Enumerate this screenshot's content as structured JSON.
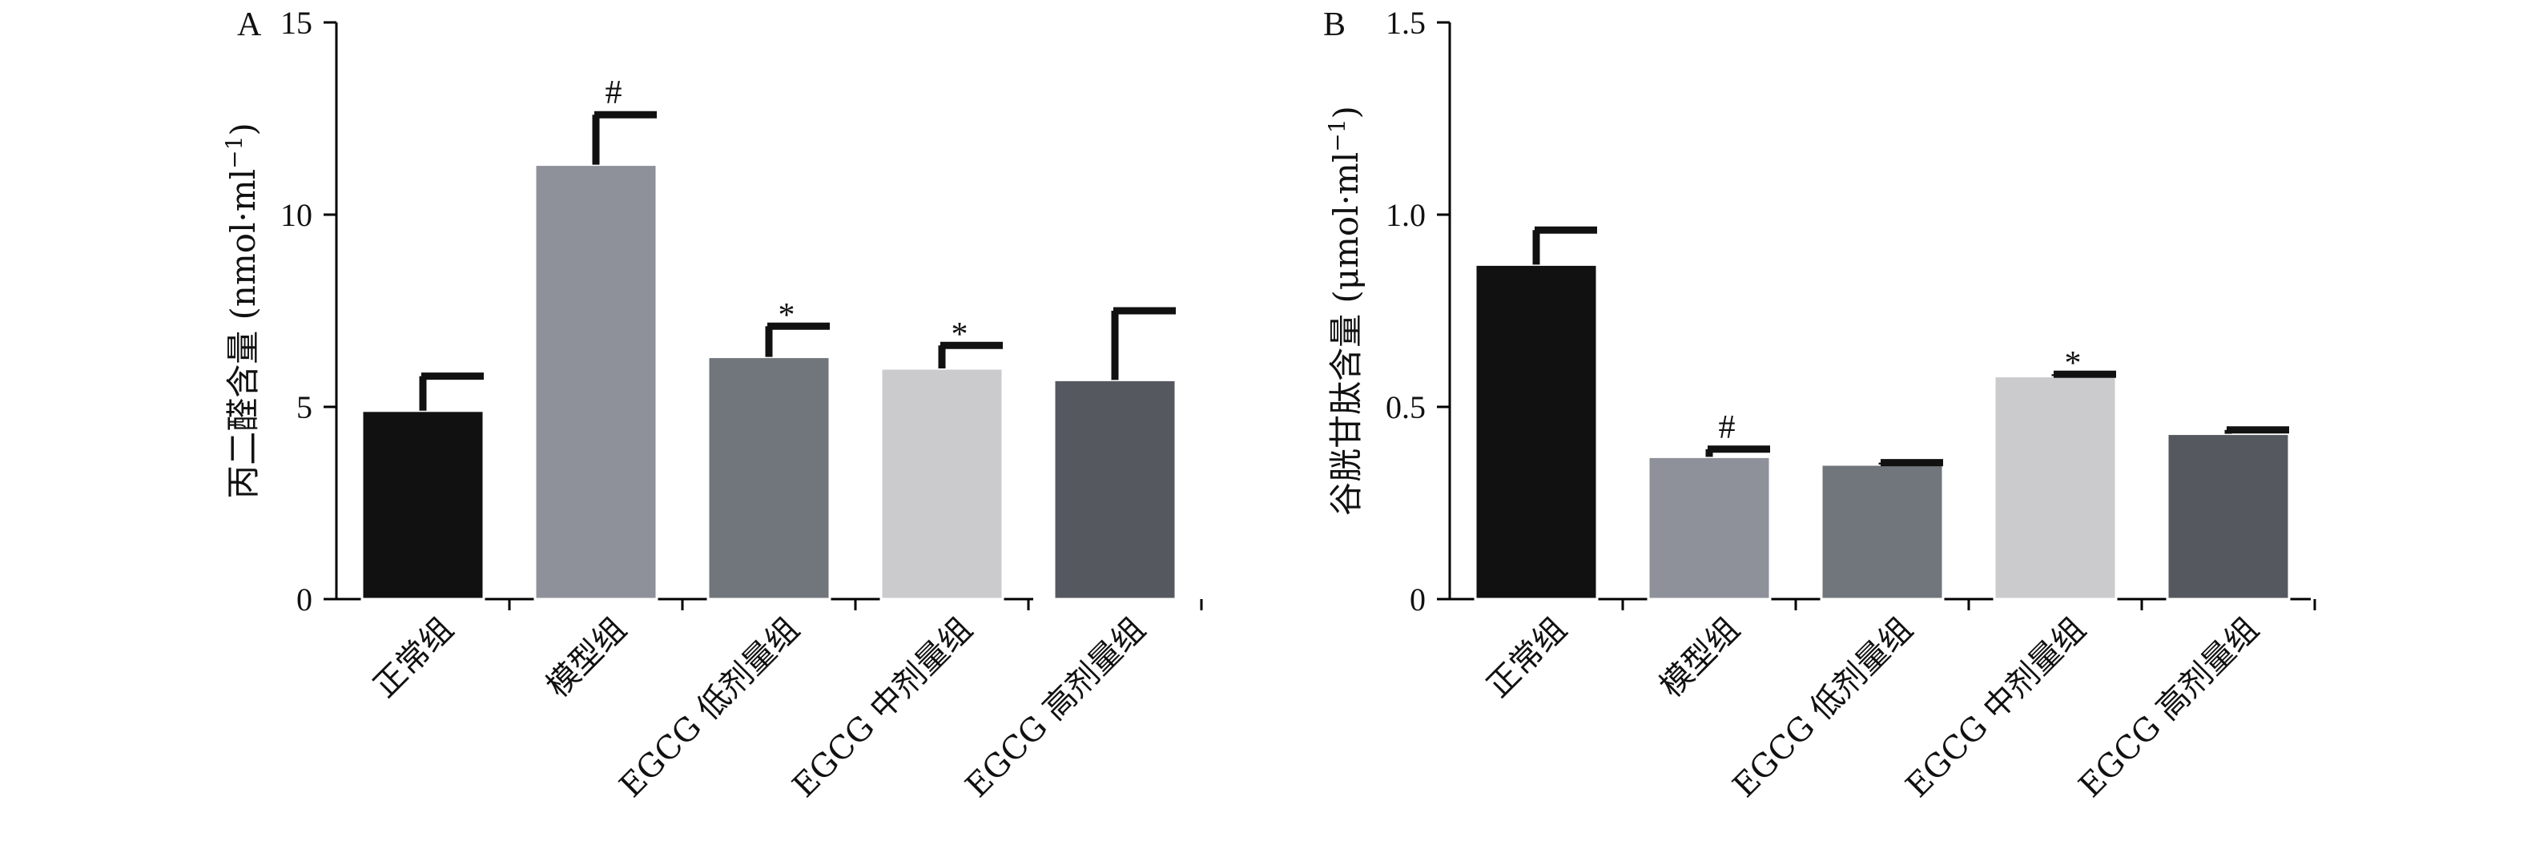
{
  "chart_data": [
    {
      "type": "bar",
      "panel_label": "A",
      "ylabel": "丙二醛含量 (nmol·ml",
      "ylabel_sup": "−1",
      "ylabel_close": ")",
      "ylim": [
        0,
        15
      ],
      "yticks": [
        0,
        5,
        10,
        15
      ],
      "ytick_labels": [
        "0",
        "5",
        "10",
        "15"
      ],
      "categories": [
        "正常组",
        "模型组",
        "EGCG 低剂量组",
        "EGCG 中剂量组",
        "EGCG 高剂量组"
      ],
      "values": [
        4.9,
        11.3,
        6.3,
        6.0,
        5.7
      ],
      "errors": [
        0.9,
        1.3,
        0.8,
        0.6,
        1.8
      ],
      "annotations": [
        "",
        "#",
        "*",
        "*",
        ""
      ],
      "colors": [
        "#111111",
        "#8e9199",
        "#71757c",
        "#cbcbcd",
        "#55585f"
      ]
    },
    {
      "type": "bar",
      "panel_label": "B",
      "ylabel": "谷胱甘肽含量 (μmol·ml",
      "ylabel_sup": "−1",
      "ylabel_close": ")",
      "ylim": [
        0,
        1.5
      ],
      "yticks": [
        0,
        0.5,
        1.0,
        1.5
      ],
      "ytick_labels": [
        "0",
        "0.5",
        "1.0",
        "1.5"
      ],
      "categories": [
        "正常组",
        "模型组",
        "EGCG 低剂量组",
        "EGCG 中剂量组",
        "EGCG 高剂量组"
      ],
      "values": [
        0.87,
        0.37,
        0.35,
        0.58,
        0.43
      ],
      "errors": [
        0.09,
        0.02,
        0.005,
        0.005,
        0.01
      ],
      "annotations": [
        "",
        "#",
        "",
        "*",
        ""
      ],
      "colors": [
        "#111111",
        "#8e9199",
        "#71757c",
        "#cbcbcd",
        "#55585f"
      ]
    }
  ]
}
